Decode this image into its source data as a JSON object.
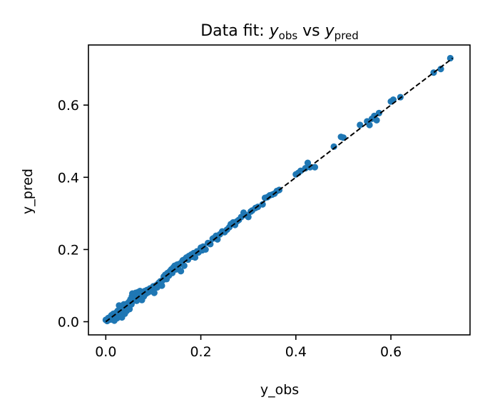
{
  "chart_data": {
    "type": "scatter",
    "title": {
      "prefix": "Data fit: ",
      "var1": "y",
      "sub1": "obs",
      "mid": " vs ",
      "var2": "y",
      "sub2": "pred"
    },
    "xlabel": "y_obs",
    "ylabel": "y_pred",
    "xlim": [
      -0.0365,
      0.7665
    ],
    "ylim": [
      -0.0365,
      0.7665
    ],
    "xticks": [
      0.0,
      0.2,
      0.4,
      0.6
    ],
    "yticks": [
      0.0,
      0.2,
      0.4,
      0.6
    ],
    "xtick_labels": [
      "0.0",
      "0.2",
      "0.4",
      "0.6"
    ],
    "ytick_labels": [
      "0.0",
      "0.2",
      "0.4",
      "0.6"
    ],
    "grid": false,
    "reference_line": {
      "style": "dashed",
      "color": "#000000",
      "from": [
        0.0,
        0.0
      ],
      "to": [
        0.73,
        0.73
      ]
    },
    "marker_color": "#1f77b4",
    "points": [
      [
        0.0,
        0.005
      ],
      [
        0.003,
        0.002
      ],
      [
        0.005,
        0.01
      ],
      [
        0.008,
        0.012
      ],
      [
        0.01,
        0.006
      ],
      [
        0.012,
        0.018
      ],
      [
        0.015,
        0.008
      ],
      [
        0.016,
        0.022
      ],
      [
        0.018,
        0.003
      ],
      [
        0.02,
        0.015
      ],
      [
        0.022,
        0.025
      ],
      [
        0.024,
        0.01
      ],
      [
        0.025,
        0.03
      ],
      [
        0.027,
        0.018
      ],
      [
        0.028,
        0.045
      ],
      [
        0.03,
        0.02
      ],
      [
        0.032,
        0.035
      ],
      [
        0.034,
        0.012
      ],
      [
        0.035,
        0.04
      ],
      [
        0.037,
        0.028
      ],
      [
        0.038,
        0.048
      ],
      [
        0.04,
        0.022
      ],
      [
        0.042,
        0.038
      ],
      [
        0.044,
        0.03
      ],
      [
        0.045,
        0.05
      ],
      [
        0.047,
        0.042
      ],
      [
        0.049,
        0.055
      ],
      [
        0.05,
        0.035
      ],
      [
        0.052,
        0.062
      ],
      [
        0.054,
        0.048
      ],
      [
        0.055,
        0.07
      ],
      [
        0.056,
        0.078
      ],
      [
        0.058,
        0.058
      ],
      [
        0.06,
        0.075
      ],
      [
        0.062,
        0.065
      ],
      [
        0.063,
        0.08
      ],
      [
        0.065,
        0.058
      ],
      [
        0.067,
        0.072
      ],
      [
        0.068,
        0.082
      ],
      [
        0.07,
        0.068
      ],
      [
        0.072,
        0.085
      ],
      [
        0.074,
        0.075
      ],
      [
        0.076,
        0.06
      ],
      [
        0.078,
        0.082
      ],
      [
        0.08,
        0.07
      ],
      [
        0.082,
        0.085
      ],
      [
        0.085,
        0.078
      ],
      [
        0.087,
        0.088
      ],
      [
        0.09,
        0.082
      ],
      [
        0.093,
        0.092
      ],
      [
        0.095,
        0.088
      ],
      [
        0.098,
        0.085
      ],
      [
        0.1,
        0.098
      ],
      [
        0.102,
        0.08
      ],
      [
        0.105,
        0.1
      ],
      [
        0.108,
        0.095
      ],
      [
        0.11,
        0.105
      ],
      [
        0.112,
        0.108
      ],
      [
        0.115,
        0.112
      ],
      [
        0.118,
        0.1
      ],
      [
        0.12,
        0.115
      ],
      [
        0.122,
        0.125
      ],
      [
        0.125,
        0.13
      ],
      [
        0.128,
        0.118
      ],
      [
        0.13,
        0.135
      ],
      [
        0.133,
        0.128
      ],
      [
        0.135,
        0.14
      ],
      [
        0.138,
        0.145
      ],
      [
        0.14,
        0.135
      ],
      [
        0.142,
        0.15
      ],
      [
        0.145,
        0.155
      ],
      [
        0.148,
        0.145
      ],
      [
        0.15,
        0.158
      ],
      [
        0.152,
        0.148
      ],
      [
        0.155,
        0.16
      ],
      [
        0.158,
        0.14
      ],
      [
        0.16,
        0.165
      ],
      [
        0.162,
        0.17
      ],
      [
        0.165,
        0.155
      ],
      [
        0.168,
        0.175
      ],
      [
        0.17,
        0.178
      ],
      [
        0.173,
        0.172
      ],
      [
        0.175,
        0.182
      ],
      [
        0.178,
        0.18
      ],
      [
        0.18,
        0.186
      ],
      [
        0.183,
        0.18
      ],
      [
        0.185,
        0.19
      ],
      [
        0.188,
        0.178
      ],
      [
        0.192,
        0.195
      ],
      [
        0.195,
        0.192
      ],
      [
        0.2,
        0.205
      ],
      [
        0.203,
        0.198
      ],
      [
        0.205,
        0.208
      ],
      [
        0.21,
        0.2
      ],
      [
        0.215,
        0.218
      ],
      [
        0.22,
        0.215
      ],
      [
        0.225,
        0.23
      ],
      [
        0.228,
        0.232
      ],
      [
        0.232,
        0.238
      ],
      [
        0.235,
        0.228
      ],
      [
        0.24,
        0.242
      ],
      [
        0.245,
        0.25
      ],
      [
        0.25,
        0.248
      ],
      [
        0.255,
        0.255
      ],
      [
        0.26,
        0.262
      ],
      [
        0.263,
        0.27
      ],
      [
        0.268,
        0.275
      ],
      [
        0.272,
        0.268
      ],
      [
        0.276,
        0.278
      ],
      [
        0.28,
        0.282
      ],
      [
        0.285,
        0.29
      ],
      [
        0.29,
        0.302
      ],
      [
        0.295,
        0.295
      ],
      [
        0.3,
        0.29
      ],
      [
        0.305,
        0.305
      ],
      [
        0.308,
        0.308
      ],
      [
        0.315,
        0.315
      ],
      [
        0.32,
        0.318
      ],
      [
        0.33,
        0.325
      ],
      [
        0.335,
        0.343
      ],
      [
        0.34,
        0.345
      ],
      [
        0.345,
        0.35
      ],
      [
        0.35,
        0.352
      ],
      [
        0.355,
        0.355
      ],
      [
        0.36,
        0.362
      ],
      [
        0.365,
        0.365
      ],
      [
        0.4,
        0.408
      ],
      [
        0.405,
        0.412
      ],
      [
        0.41,
        0.418
      ],
      [
        0.42,
        0.425
      ],
      [
        0.425,
        0.44
      ],
      [
        0.43,
        0.428
      ],
      [
        0.44,
        0.428
      ],
      [
        0.48,
        0.485
      ],
      [
        0.495,
        0.512
      ],
      [
        0.5,
        0.51
      ],
      [
        0.535,
        0.545
      ],
      [
        0.55,
        0.555
      ],
      [
        0.555,
        0.545
      ],
      [
        0.56,
        0.562
      ],
      [
        0.565,
        0.57
      ],
      [
        0.57,
        0.558
      ],
      [
        0.575,
        0.578
      ],
      [
        0.6,
        0.61
      ],
      [
        0.605,
        0.615
      ],
      [
        0.62,
        0.622
      ],
      [
        0.69,
        0.69
      ],
      [
        0.705,
        0.7
      ],
      [
        0.725,
        0.73
      ]
    ]
  }
}
